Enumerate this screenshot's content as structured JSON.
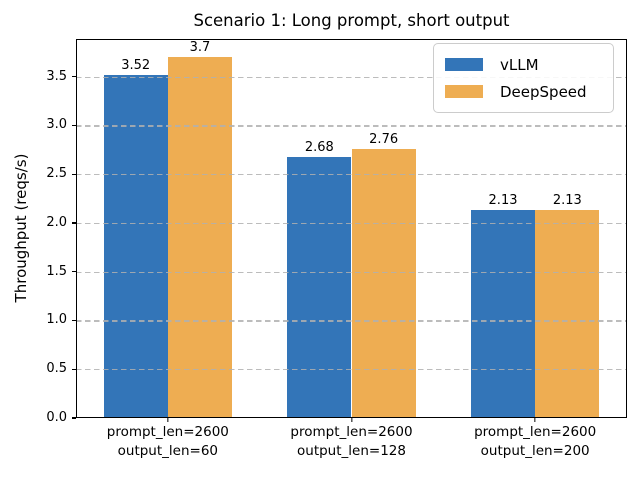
{
  "chart_data": {
    "type": "bar",
    "title": "Scenario 1: Long prompt, short output",
    "xlabel": "",
    "ylabel": "Throughput (reqs/s)",
    "categories": [
      "prompt_len=2600\noutput_len=60",
      "prompt_len=2600\noutput_len=128",
      "prompt_len=2600\noutput_len=200"
    ],
    "series": [
      {
        "name": "vLLM",
        "color": "#3375b8",
        "values": [
          3.52,
          2.68,
          2.13
        ],
        "labels": [
          "3.52",
          "2.68",
          "2.13"
        ]
      },
      {
        "name": "DeepSpeed",
        "color": "#eead52",
        "values": [
          3.7,
          2.76,
          2.13
        ],
        "labels": [
          "3.7",
          "2.76",
          "2.13"
        ]
      }
    ],
    "ylim": [
      0,
      3.885
    ],
    "yticks": [
      0.0,
      0.5,
      1.0,
      1.5,
      2.0,
      2.5,
      3.0,
      3.5
    ],
    "ytick_labels": [
      "0.0",
      "0.5",
      "1.0",
      "1.5",
      "2.0",
      "2.5",
      "3.0",
      "3.5"
    ],
    "grid": true,
    "grid_style": "dashed",
    "grid_color": "#b0b0b0",
    "legend_position": "upper right",
    "bar_width_fraction": 0.35
  }
}
